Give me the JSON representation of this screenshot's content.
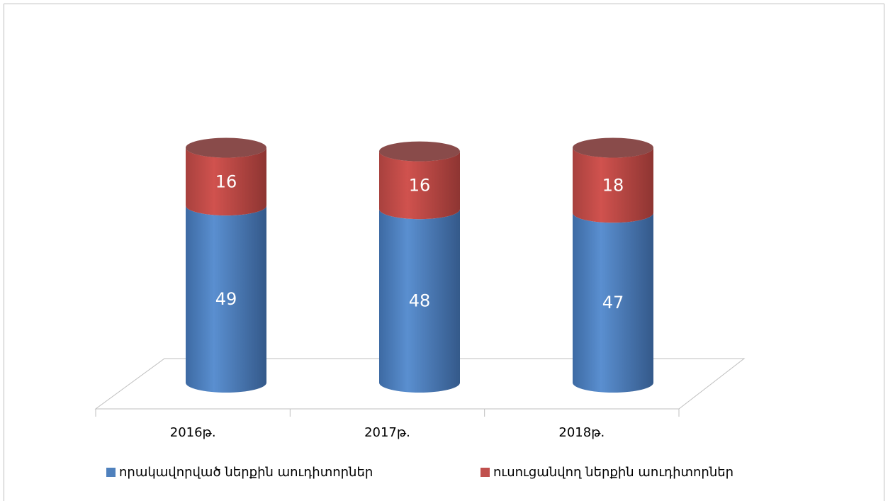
{
  "chart_data": {
    "type": "bar",
    "stacked": true,
    "categories": [
      "2016թ.",
      "2017թ.",
      "2018թ."
    ],
    "series": [
      {
        "name": "որակավորված ներքին աուդիտորներ",
        "color": "#4f81bd",
        "values": [
          49,
          48,
          47
        ]
      },
      {
        "name": "ուսուցանվող ներքին աուդիտորներ",
        "color": "#c0504d",
        "values": [
          16,
          16,
          18
        ]
      }
    ]
  }
}
